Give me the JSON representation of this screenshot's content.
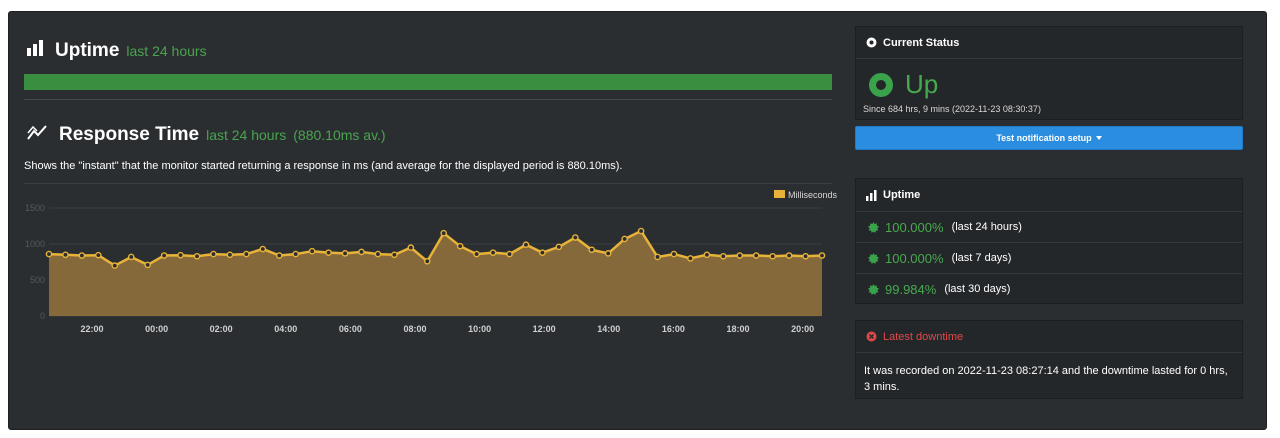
{
  "uptime": {
    "title": "Uptime",
    "period": "last 24 hours",
    "bar_color": "#3a8e3f"
  },
  "response_time": {
    "title": "Response Time",
    "period": "last 24 hours",
    "average": "(880.10ms av.)",
    "description": "Shows the \"instant\" that the monitor started returning a response in ms (and average for the displayed period is 880.10ms)."
  },
  "chart_data": {
    "type": "area",
    "title": "",
    "xlabel": "",
    "ylabel": "",
    "legend": "top-right",
    "grid": true,
    "ylim": [
      0,
      1500
    ],
    "y_ticks": [
      "1500",
      "1000",
      "500",
      "0"
    ],
    "x_ticks": [
      "22:00",
      "00:00",
      "02:00",
      "04:00",
      "06:00",
      "08:00",
      "10:00",
      "12:00",
      "14:00",
      "16:00",
      "18:00",
      "20:00"
    ],
    "series": [
      {
        "name": "Milliseconds",
        "color": "#e8b339",
        "values": [
          860,
          850,
          840,
          845,
          700,
          820,
          710,
          840,
          845,
          830,
          860,
          850,
          860,
          930,
          840,
          860,
          900,
          880,
          870,
          890,
          860,
          850,
          950,
          760,
          1150,
          970,
          860,
          880,
          860,
          990,
          880,
          960,
          1090,
          920,
          870,
          1070,
          1180,
          820,
          860,
          800,
          850,
          830,
          840,
          840,
          830,
          840,
          830,
          840
        ]
      }
    ]
  },
  "current_status": {
    "title": "Current Status",
    "status": "Up",
    "since": "Since 684 hrs, 9 mins (2022-11-23 08:30:37)"
  },
  "notify_button": {
    "label": "Test notification setup"
  },
  "uptime_panel": {
    "title": "Uptime",
    "rows": [
      {
        "pct": "100.000%",
        "period": "(last 24 hours)"
      },
      {
        "pct": "100.000%",
        "period": "(last 7 days)"
      },
      {
        "pct": "99.984%",
        "period": "(last 30 days)"
      }
    ]
  },
  "latest_downtime": {
    "title": "Latest downtime",
    "text": "It was recorded on 2022-11-23 08:27:14 and the downtime lasted for 0 hrs, 3 mins."
  },
  "colors": {
    "accent_green": "#47a94e",
    "accent_blue": "#2a8de0",
    "alert_red": "#e04848",
    "chart_fill": "#8a6d3b"
  }
}
